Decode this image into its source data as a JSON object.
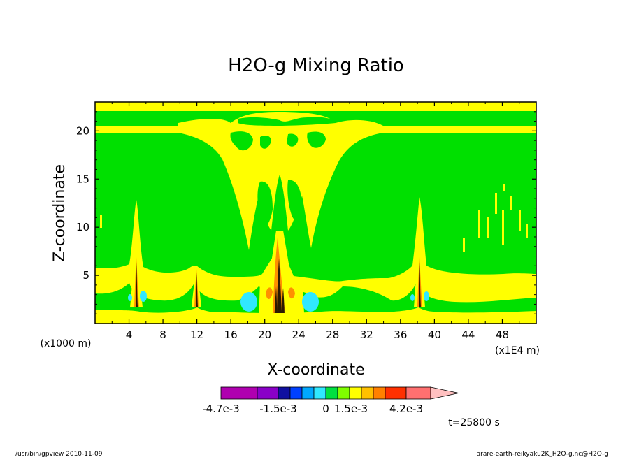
{
  "chart_data": {
    "type": "heatmap",
    "title": "H2O-g Mixing Ratio",
    "xlabel": "X-coordinate",
    "ylabel": "Z-coordinate",
    "x_unit_left": "(x1000 m)",
    "x_unit_right": "(x1E4 m)",
    "xlim": [
      0,
      52
    ],
    "ylim": [
      0,
      23
    ],
    "xticks": [
      4,
      8,
      12,
      16,
      20,
      24,
      28,
      32,
      36,
      40,
      44,
      48
    ],
    "xtick_labels": [
      "4",
      "8",
      "12",
      "16",
      "20",
      "24",
      "28",
      "32",
      "36",
      "40",
      "44",
      "48"
    ],
    "yticks": [
      5,
      10,
      15,
      20
    ],
    "ytick_labels": [
      "5",
      "10",
      "15",
      "20"
    ],
    "colorbar": {
      "colors": [
        "#b000b0",
        "#8a00c8",
        "#1010a0",
        "#0040ff",
        "#00a8ff",
        "#30e8ff",
        "#00e040",
        "#80ff00",
        "#ffff00",
        "#ffc000",
        "#ff8000",
        "#ff3000",
        "#ff7070"
      ],
      "extend_color": "#ffc0c0",
      "labels": [
        "-4.7e-3",
        "-1.5e-3",
        "0",
        "1.5e-3",
        "4.2e-3"
      ]
    },
    "time_label": "t=25800 s",
    "features": {
      "background_color": "#00e000",
      "yellow_color": "#ffff00",
      "cyan_color": "#30e8ff",
      "orange_color": "#ff9000",
      "dark_color": "#2a1a00",
      "horizontal_yellow_band_z": 20,
      "convective_columns_x": [
        4.5,
        12,
        21.5,
        37.5
      ]
    }
  },
  "footer": {
    "left": "/usr/bin/gpview  2010-11-09",
    "right": "arare-earth-reikyaku2K_H2O-g.nc@H2O-g"
  }
}
